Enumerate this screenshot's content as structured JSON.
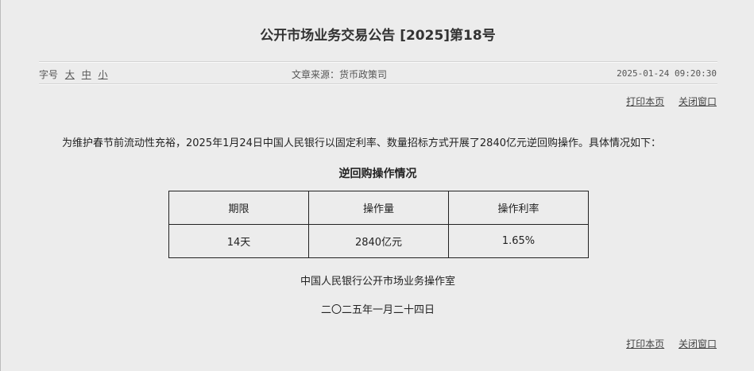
{
  "title": "公开市场业务交易公告 [2025]第18号",
  "meta": {
    "font_size_label": "字号",
    "font_sizes": [
      "大",
      "中",
      "小"
    ],
    "source": "文章来源：货币政策司",
    "datetime": "2025-01-24 09:20:30"
  },
  "links": {
    "print": "打印本页",
    "close": "关闭窗口"
  },
  "body": {
    "paragraph": "为维护春节前流动性充裕，2025年1月24日中国人民银行以固定利率、数量招标方式开展了2840亿元逆回购操作。具体情况如下：",
    "table_title": "逆回购操作情况",
    "table": {
      "headers": [
        "期限",
        "操作量",
        "操作利率"
      ],
      "rows": [
        [
          "14天",
          "2840亿元",
          "1.65%"
        ]
      ]
    },
    "signature": "中国人民银行公开市场业务操作室",
    "date": "二〇二五年一月二十四日"
  }
}
